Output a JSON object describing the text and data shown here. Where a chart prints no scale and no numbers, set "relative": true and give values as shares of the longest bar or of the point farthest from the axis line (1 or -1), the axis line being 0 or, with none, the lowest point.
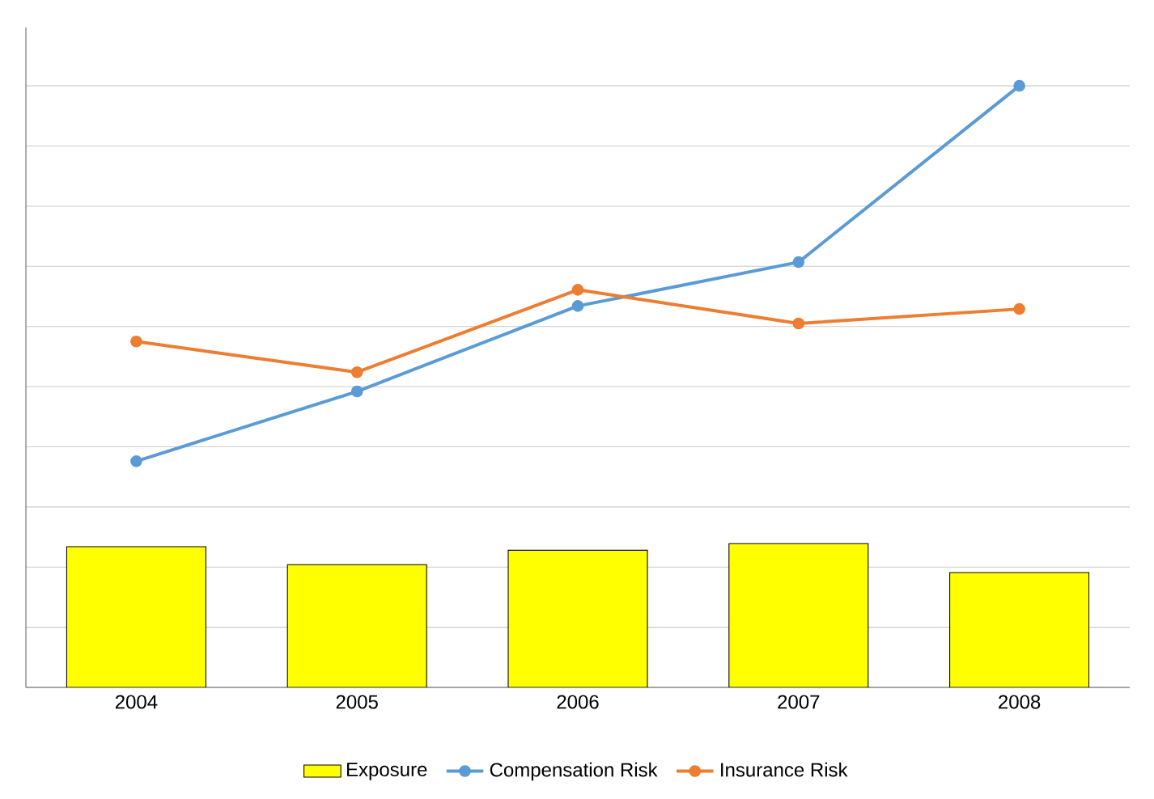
{
  "chart_data": {
    "type": "bar",
    "relative": true,
    "categories": [
      "2004",
      "2005",
      "2006",
      "2007",
      "2008"
    ],
    "series": [
      {
        "name": "Exposure",
        "color": "#ffff00",
        "values": [
          0.234,
          0.204,
          0.228,
          0.239,
          0.191
        ]
      },
      {
        "name": "Compensation Risk",
        "type": "line",
        "color": "#5b9bd5",
        "values": [
          0.376,
          0.492,
          0.634,
          0.707,
          1
        ]
      },
      {
        "name": "Insurance Risk",
        "type": "line",
        "color": "#ed7d31",
        "values": [
          0.575,
          0.524,
          0.661,
          0.605,
          0.629
        ]
      }
    ],
    "grid": "y",
    "legend": "bottom",
    "marker": "circle",
    "line_style": "solid"
  }
}
